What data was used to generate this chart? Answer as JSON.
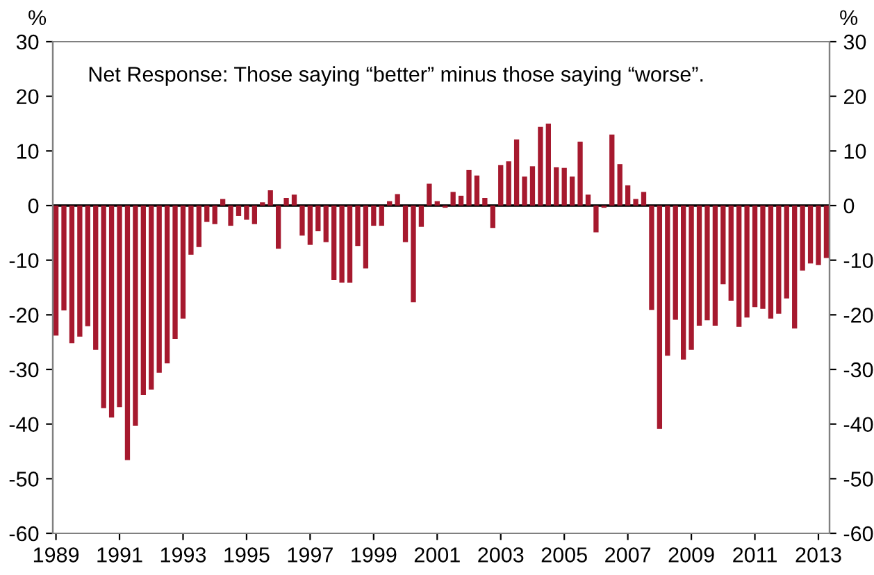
{
  "chart_data": {
    "type": "bar",
    "ylabel": "%",
    "y2label": "%",
    "annotations": [
      "Net Response: Those saying “better” minus those saying “worse”."
    ],
    "x": [
      1989.0,
      1989.25,
      1989.5,
      1989.75,
      1990.0,
      1990.25,
      1990.5,
      1990.75,
      1991.0,
      1991.25,
      1991.5,
      1991.75,
      1992.0,
      1992.25,
      1992.5,
      1992.75,
      1993.0,
      1993.25,
      1993.5,
      1993.75,
      1994.0,
      1994.25,
      1994.5,
      1994.75,
      1995.0,
      1995.25,
      1995.5,
      1995.75,
      1996.0,
      1996.25,
      1996.5,
      1996.75,
      1997.0,
      1997.25,
      1997.5,
      1997.75,
      1998.0,
      1998.25,
      1998.5,
      1998.75,
      1999.0,
      1999.25,
      1999.5,
      1999.75,
      2000.0,
      2000.25,
      2000.5,
      2000.75,
      2001.0,
      2001.25,
      2001.5,
      2001.75,
      2002.0,
      2002.25,
      2002.5,
      2002.75,
      2003.0,
      2003.25,
      2003.5,
      2003.75,
      2004.0,
      2004.25,
      2004.5,
      2004.75,
      2005.0,
      2005.25,
      2005.5,
      2005.75,
      2006.0,
      2006.25,
      2006.5,
      2006.75,
      2007.0,
      2007.25,
      2007.5,
      2007.75,
      2008.0,
      2008.25,
      2008.5,
      2008.75,
      2009.0,
      2009.25,
      2009.5,
      2009.75,
      2010.0,
      2010.25,
      2010.5,
      2010.75,
      2011.0,
      2011.25,
      2011.5,
      2011.75,
      2012.0,
      2012.25,
      2012.5,
      2012.75,
      2013.0,
      2013.25
    ],
    "series": [
      {
        "color": "#a6192e",
        "values": [
          -23.8,
          -19.2,
          -25.2,
          -24,
          -22.1,
          -26.4,
          -37.1,
          -38.8,
          -36.9,
          -46.6,
          -40.3,
          -34.7,
          -33.7,
          -30.6,
          -28.9,
          -24.4,
          -20.7,
          -9,
          -7.6,
          -3,
          -3.4,
          1.2,
          -3.7,
          -1.9,
          -2.6,
          -3.4,
          0.6,
          2.8,
          -7.9,
          1.4,
          2,
          -5.5,
          -7.2,
          -4.7,
          -6.7,
          -13.6,
          -14.1,
          -14.1,
          -7.4,
          -11.5,
          -3.7,
          -3.7,
          0.8,
          2.1,
          -6.7,
          -17.7,
          -3.9,
          4,
          0.8,
          -0.4,
          2.5,
          1.8,
          6.5,
          5.5,
          1.4,
          -4.1,
          7.4,
          8.1,
          12.1,
          5.3,
          7.2,
          14.4,
          15,
          7,
          6.9,
          5.3,
          11.7,
          2,
          -4.9,
          -0.4,
          13,
          7.6,
          3.7,
          1.2,
          2.5,
          -19.1,
          -40.9,
          -27.5,
          -20.9,
          -28.2,
          -26.4,
          -22,
          -21,
          -22,
          -14.4,
          -17.4,
          -22.2,
          -20.5,
          -18.6,
          -18.9,
          -20.7,
          -19.8,
          -17,
          -22.5,
          -11.9,
          -10.6,
          -10.9,
          -9.6
        ]
      }
    ],
    "xlim": [
      1988.9,
      2013.35
    ],
    "xticks": [
      1989,
      1991,
      1993,
      1995,
      1997,
      1999,
      2001,
      2003,
      2005,
      2007,
      2009,
      2011,
      2013
    ],
    "ylim": [
      -60,
      30
    ],
    "yticks": [
      -60,
      -50,
      -40,
      -30,
      -20,
      -10,
      0,
      10,
      20,
      30
    ],
    "y2lim": [
      -60,
      30
    ],
    "y2ticks": [
      -60,
      -50,
      -40,
      -30,
      -20,
      -10,
      0,
      10,
      20,
      30
    ],
    "ref_lines": [
      {
        "axis": "y",
        "value": 0,
        "color": "#000000"
      }
    ],
    "grid": false,
    "legend": false
  }
}
